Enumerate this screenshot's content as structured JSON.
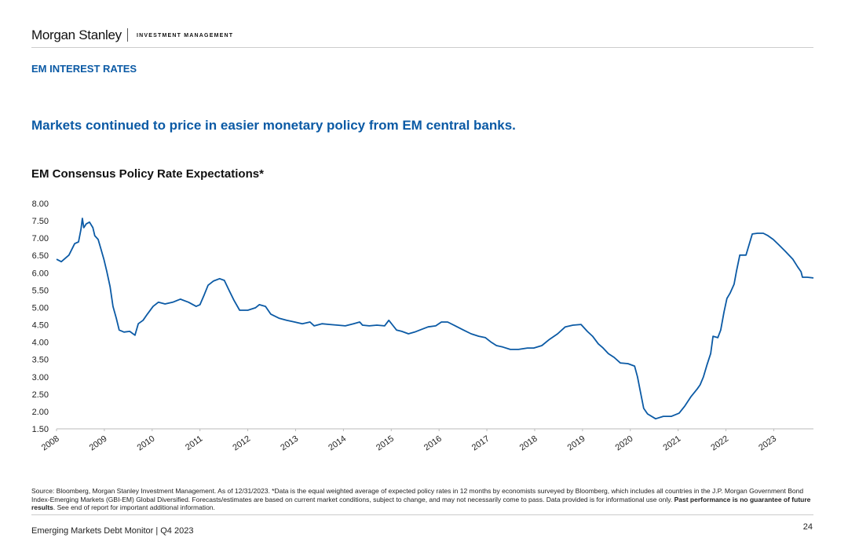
{
  "brand": "Morgan Stanley",
  "division": "INVESTMENT MANAGEMENT",
  "section": "EM INTEREST RATES",
  "headline": "Markets continued to price in easier monetary policy from EM central banks.",
  "footnote": [
    "Source: Bloomberg, Morgan Stanley Investment Management. As of 12/31/2023. *Data is the equal weighted average of expected policy rates in 12 months by economists surveyed by Bloomberg, which includes all countries in the J.P. Morgan Government Bond Index-Emerging Markets (GBI-EM) Global Diversified. Forecasts/estimates are based on current market conditions, subject to change, and may not necessarily come to pass. Data provided is for informational use only. ",
    "Past performance is no guarantee of future results",
    ". See end of report for important additional information."
  ],
  "footer": "Emerging Markets Debt Monitor | Q4 2023",
  "page_number": "24",
  "chart_data": {
    "type": "line",
    "title": "EM Consensus Policy Rate Expectations*",
    "xlim": [
      2008,
      2023.83
    ],
    "xticks": [
      2008,
      2009,
      2010,
      2011,
      2012,
      2013,
      2014,
      2015,
      2016,
      2017,
      2018,
      2019,
      2020,
      2021,
      2022,
      2023
    ],
    "ylim": [
      1.5,
      8
    ],
    "yticks": [
      {
        "value": 1.5,
        "label": "1.50"
      },
      {
        "value": 2,
        "label": "2.00"
      },
      {
        "value": 2.5,
        "label": "2.50"
      },
      {
        "value": 3,
        "label": "3.00"
      },
      {
        "value": 3.5,
        "label": "3.50"
      },
      {
        "value": 4,
        "label": "4.00"
      },
      {
        "value": 4.5,
        "label": "4.50"
      },
      {
        "value": 5,
        "label": "5.00"
      },
      {
        "value": 5.5,
        "label": "5.50"
      },
      {
        "value": 6,
        "label": "6.00"
      },
      {
        "value": 6.5,
        "label": "6.50"
      },
      {
        "value": 7,
        "label": "7.00"
      },
      {
        "value": 7.5,
        "label": "7.50"
      },
      {
        "value": 8,
        "label": "8.00"
      }
    ],
    "grid": false,
    "x": [
      2008.0,
      2008.1,
      2008.16,
      2008.26,
      2008.38,
      2008.46,
      2008.51,
      2008.54,
      2008.57,
      2008.62,
      2008.69,
      2008.76,
      2008.8,
      2008.87,
      2008.92,
      2008.99,
      2009.05,
      2009.12,
      2009.18,
      2009.25,
      2009.31,
      2009.41,
      2009.53,
      2009.64,
      2009.71,
      2009.81,
      2009.9,
      2010.02,
      2010.13,
      2010.27,
      2010.43,
      2010.59,
      2010.76,
      2010.92,
      2011.0,
      2011.09,
      2011.17,
      2011.28,
      2011.41,
      2011.51,
      2011.61,
      2011.71,
      2011.83,
      2012.0,
      2012.16,
      2012.24,
      2012.37,
      2012.48,
      2012.65,
      2012.81,
      2012.98,
      2013.14,
      2013.3,
      2013.39,
      2013.55,
      2013.71,
      2013.88,
      2014.04,
      2014.21,
      2014.34,
      2014.4,
      2014.54,
      2014.7,
      2014.86,
      2014.95,
      2015.03,
      2015.11,
      2015.22,
      2015.36,
      2015.49,
      2015.6,
      2015.77,
      2015.93,
      2016.05,
      2016.18,
      2016.34,
      2016.51,
      2016.67,
      2016.83,
      2016.97,
      2017.08,
      2017.2,
      2017.33,
      2017.49,
      2017.66,
      2017.85,
      2017.98,
      2018.15,
      2018.31,
      2018.48,
      2018.64,
      2018.8,
      2018.97,
      2019.1,
      2019.21,
      2019.33,
      2019.43,
      2019.54,
      2019.66,
      2019.79,
      2019.95,
      2020.09,
      2020.15,
      2020.2,
      2020.28,
      2020.36,
      2020.53,
      2020.69,
      2020.86,
      2021.02,
      2021.14,
      2021.27,
      2021.4,
      2021.46,
      2021.53,
      2021.6,
      2021.68,
      2021.73,
      2021.83,
      2021.89,
      2021.96,
      2022.02,
      2022.09,
      2022.17,
      2022.22,
      2022.29,
      2022.42,
      2022.55,
      2022.66,
      2022.78,
      2022.88,
      2022.99,
      2023.11,
      2023.24,
      2023.4,
      2023.5,
      2023.57,
      2023.6,
      2023.7,
      2023.83
    ],
    "series": [
      {
        "name": "EM Consensus Policy Rate Expectations",
        "color": "#0b5aa5",
        "values": [
          6.39,
          6.32,
          6.39,
          6.51,
          6.84,
          6.89,
          7.25,
          7.57,
          7.3,
          7.41,
          7.46,
          7.3,
          7.07,
          6.96,
          6.73,
          6.39,
          6.05,
          5.6,
          5.03,
          4.69,
          4.35,
          4.29,
          4.31,
          4.2,
          4.53,
          4.63,
          4.81,
          5.03,
          5.15,
          5.1,
          5.15,
          5.24,
          5.15,
          5.03,
          5.08,
          5.37,
          5.64,
          5.76,
          5.83,
          5.78,
          5.49,
          5.21,
          4.92,
          4.92,
          4.99,
          5.08,
          5.03,
          4.81,
          4.69,
          4.63,
          4.58,
          4.53,
          4.58,
          4.47,
          4.53,
          4.51,
          4.49,
          4.47,
          4.53,
          4.58,
          4.49,
          4.47,
          4.49,
          4.47,
          4.63,
          4.49,
          4.35,
          4.31,
          4.24,
          4.29,
          4.35,
          4.44,
          4.47,
          4.58,
          4.58,
          4.47,
          4.35,
          4.24,
          4.17,
          4.13,
          4.01,
          3.9,
          3.86,
          3.79,
          3.79,
          3.83,
          3.83,
          3.9,
          4.08,
          4.24,
          4.44,
          4.49,
          4.51,
          4.31,
          4.17,
          3.95,
          3.83,
          3.67,
          3.56,
          3.4,
          3.38,
          3.31,
          3.0,
          2.65,
          2.09,
          1.93,
          1.79,
          1.86,
          1.86,
          1.95,
          2.16,
          2.43,
          2.65,
          2.77,
          3.0,
          3.33,
          3.67,
          4.17,
          4.13,
          4.35,
          4.87,
          5.26,
          5.42,
          5.67,
          6.05,
          6.51,
          6.51,
          7.12,
          7.14,
          7.14,
          7.07,
          6.96,
          6.8,
          6.62,
          6.39,
          6.17,
          6.03,
          5.87,
          5.87,
          5.85
        ]
      }
    ]
  }
}
